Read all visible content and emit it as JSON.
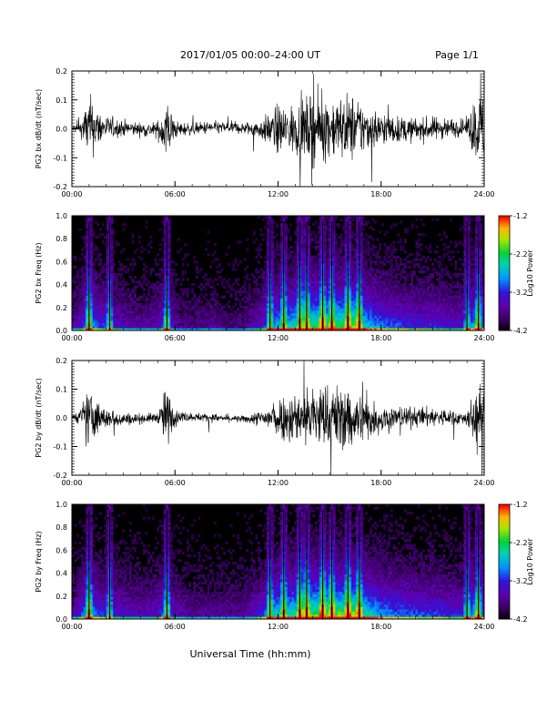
{
  "header": {
    "title": "2017/01/05  00:00–24:00 UT",
    "page": "Page 1/1"
  },
  "footer": {
    "xlabel": "Universal Time (hh:mm)"
  },
  "chart_data": [
    {
      "type": "line",
      "ylabel": "PG2 bx dB/dt (nT/sec)",
      "xlim": [
        0,
        24
      ],
      "ylim": [
        -0.2,
        0.2
      ],
      "x_ticks": [
        "00:00",
        "06:00",
        "12:00",
        "18:00",
        "24:00"
      ],
      "y_ticks": [
        "0.2",
        "0.1",
        "0.0",
        "-0.1",
        "-0.2"
      ],
      "x_hours": [
        0,
        0.5,
        1,
        1.5,
        2,
        3,
        4,
        5,
        5.5,
        6,
        7,
        8,
        9,
        10,
        11,
        11.5,
        12,
        13,
        14,
        14.5,
        15,
        16,
        16.5,
        17,
        18,
        19,
        20,
        21,
        22,
        23,
        23.5,
        24
      ],
      "envelope": [
        0.02,
        0.04,
        0.2,
        0.12,
        0.07,
        0.05,
        0.04,
        0.05,
        0.2,
        0.05,
        0.035,
        0.04,
        0.035,
        0.035,
        0.06,
        0.1,
        0.15,
        0.15,
        0.2,
        0.2,
        0.18,
        0.2,
        0.2,
        0.15,
        0.1,
        0.08,
        0.07,
        0.07,
        0.06,
        0.05,
        0.2,
        0.2
      ]
    },
    {
      "type": "heatmap",
      "ylabel": "PG2 bx Freq (Hz)",
      "xlim": [
        0,
        24
      ],
      "ylim": [
        0,
        1
      ],
      "x_ticks": [
        "00:00",
        "06:00",
        "12:00",
        "18:00",
        "24:00"
      ],
      "y_ticks": [
        "1.0",
        "0.8",
        "0.6",
        "0.4",
        "0.2",
        "0.0"
      ],
      "colorbar": {
        "label": "Log10 Power",
        "ticks": [
          "-1.2",
          "-2.2",
          "-3.2",
          "-4.2"
        ],
        "range": [
          -4.2,
          -1.2
        ]
      },
      "x_hours": [
        0,
        0.5,
        1,
        1.5,
        2,
        3,
        4,
        5,
        5.5,
        6,
        7,
        8,
        9,
        10,
        11,
        11.5,
        12,
        13,
        14,
        14.5,
        15,
        16,
        16.5,
        17,
        18,
        19,
        20,
        21,
        22,
        23,
        23.5,
        24
      ],
      "activity": [
        0.2,
        0.3,
        0.55,
        0.4,
        0.35,
        0.25,
        0.2,
        0.25,
        0.45,
        0.2,
        0.15,
        0.2,
        0.15,
        0.15,
        0.3,
        0.45,
        0.55,
        0.6,
        0.7,
        0.75,
        0.7,
        0.75,
        0.8,
        0.6,
        0.45,
        0.4,
        0.35,
        0.35,
        0.3,
        0.3,
        0.6,
        0.4
      ],
      "bursts_hours": [
        0.9,
        2.1,
        5.4,
        11.5,
        12.2,
        13.2,
        13.6,
        14.5,
        15.1,
        16.0,
        16.6,
        22.9,
        23.6
      ]
    },
    {
      "type": "line",
      "ylabel": "PG2 by dB/dt (nT/sec)",
      "xlim": [
        0,
        24
      ],
      "ylim": [
        -0.2,
        0.2
      ],
      "x_ticks": [
        "00:00",
        "06:00",
        "12:00",
        "18:00",
        "24:00"
      ],
      "y_ticks": [
        "0.2",
        "0.1",
        "0.0",
        "-0.1",
        "-0.2"
      ],
      "x_hours": [
        0,
        0.5,
        1,
        1.5,
        2,
        3,
        4,
        5,
        5.5,
        6,
        7,
        8,
        9,
        10,
        11,
        11.5,
        12,
        13,
        14,
        14.5,
        15,
        16,
        16.5,
        17,
        18,
        19,
        20,
        21,
        22,
        23,
        23.5,
        24
      ],
      "envelope": [
        0.015,
        0.05,
        0.2,
        0.1,
        0.06,
        0.04,
        0.03,
        0.03,
        0.2,
        0.04,
        0.025,
        0.025,
        0.02,
        0.02,
        0.05,
        0.08,
        0.13,
        0.15,
        0.2,
        0.2,
        0.19,
        0.2,
        0.18,
        0.14,
        0.09,
        0.07,
        0.06,
        0.06,
        0.05,
        0.04,
        0.2,
        0.2
      ]
    },
    {
      "type": "heatmap",
      "ylabel": "PG2 by Freq (Hz)",
      "xlim": [
        0,
        24
      ],
      "ylim": [
        0,
        1
      ],
      "x_ticks": [
        "00:00",
        "06:00",
        "12:00",
        "18:00",
        "24:00"
      ],
      "y_ticks": [
        "1.0",
        "0.8",
        "0.6",
        "0.4",
        "0.2",
        "0.0"
      ],
      "colorbar": {
        "label": "Log10 Power",
        "ticks": [
          "-1.2",
          "-2.2",
          "-3.2",
          "-4.2"
        ],
        "range": [
          -4.2,
          -1.2
        ]
      },
      "x_hours": [
        0,
        0.5,
        1,
        1.5,
        2,
        3,
        4,
        5,
        5.5,
        6,
        7,
        8,
        9,
        10,
        11,
        11.5,
        12,
        13,
        14,
        14.5,
        15,
        16,
        16.5,
        17,
        18,
        19,
        20,
        21,
        22,
        23,
        23.5,
        24
      ],
      "activity": [
        0.2,
        0.35,
        0.6,
        0.4,
        0.35,
        0.3,
        0.25,
        0.3,
        0.5,
        0.25,
        0.2,
        0.2,
        0.2,
        0.2,
        0.35,
        0.5,
        0.6,
        0.65,
        0.75,
        0.8,
        0.75,
        0.8,
        0.8,
        0.65,
        0.5,
        0.45,
        0.4,
        0.4,
        0.35,
        0.35,
        0.6,
        0.4
      ],
      "bursts_hours": [
        0.9,
        2.1,
        5.4,
        11.5,
        12.2,
        13.2,
        13.6,
        14.5,
        15.1,
        16.0,
        16.6,
        22.9,
        23.6
      ]
    }
  ]
}
